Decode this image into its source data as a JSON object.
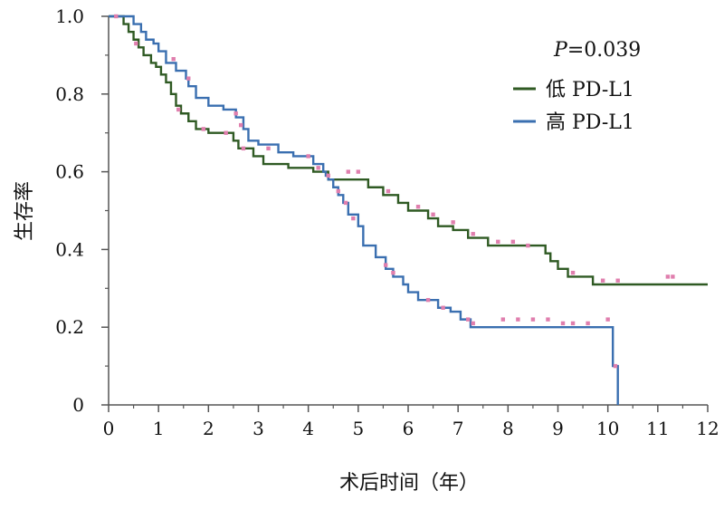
{
  "chart_data": {
    "type": "line",
    "xlabel": "术后时间（年）",
    "ylabel": "生存率",
    "xlim": [
      0,
      12
    ],
    "ylim": [
      0,
      1.0
    ],
    "x_ticks": [
      0,
      1,
      2,
      3,
      4,
      5,
      6,
      7,
      8,
      9,
      10,
      11,
      12
    ],
    "y_ticks": [
      0,
      0.2,
      0.4,
      0.6,
      0.8,
      1.0
    ],
    "x_tick_labels": [
      "0",
      "1",
      "2",
      "3",
      "4",
      "5",
      "6",
      "7",
      "8",
      "9",
      "10",
      "11",
      "12"
    ],
    "y_tick_labels": [
      "0",
      "0.2",
      "0.4",
      "0.6",
      "0.8",
      "1.0"
    ],
    "grid": false,
    "legend_position": "top-right",
    "annotation": {
      "p_label": "P",
      "p_value": "=0.039"
    },
    "censor_color": "#e07fae",
    "series": [
      {
        "name": "低 PD-L1",
        "color": "#2f5a23",
        "steps": [
          [
            0,
            1.0
          ],
          [
            0.3,
            0.98
          ],
          [
            0.4,
            0.96
          ],
          [
            0.5,
            0.94
          ],
          [
            0.6,
            0.92
          ],
          [
            0.7,
            0.9
          ],
          [
            0.85,
            0.88
          ],
          [
            0.95,
            0.87
          ],
          [
            1.05,
            0.85
          ],
          [
            1.15,
            0.83
          ],
          [
            1.25,
            0.8
          ],
          [
            1.35,
            0.77
          ],
          [
            1.45,
            0.75
          ],
          [
            1.6,
            0.73
          ],
          [
            1.75,
            0.71
          ],
          [
            2.0,
            0.7
          ],
          [
            2.5,
            0.68
          ],
          [
            2.6,
            0.66
          ],
          [
            2.9,
            0.64
          ],
          [
            3.1,
            0.62
          ],
          [
            3.6,
            0.61
          ],
          [
            4.1,
            0.6
          ],
          [
            4.4,
            0.58
          ],
          [
            5.2,
            0.56
          ],
          [
            5.5,
            0.54
          ],
          [
            5.8,
            0.52
          ],
          [
            6.0,
            0.5
          ],
          [
            6.4,
            0.48
          ],
          [
            6.6,
            0.46
          ],
          [
            6.9,
            0.45
          ],
          [
            7.2,
            0.43
          ],
          [
            7.6,
            0.41
          ],
          [
            8.75,
            0.39
          ],
          [
            8.85,
            0.37
          ],
          [
            9.0,
            0.35
          ],
          [
            9.2,
            0.33
          ],
          [
            9.7,
            0.31
          ],
          [
            12.0,
            0.31
          ]
        ],
        "censored": [
          [
            0.55,
            0.93
          ],
          [
            1.4,
            0.76
          ],
          [
            1.9,
            0.71
          ],
          [
            2.35,
            0.7
          ],
          [
            2.7,
            0.66
          ],
          [
            4.4,
            0.59
          ],
          [
            4.8,
            0.6
          ],
          [
            5.0,
            0.6
          ],
          [
            5.6,
            0.55
          ],
          [
            6.2,
            0.51
          ],
          [
            6.5,
            0.49
          ],
          [
            6.9,
            0.47
          ],
          [
            7.3,
            0.44
          ],
          [
            7.8,
            0.42
          ],
          [
            8.1,
            0.42
          ],
          [
            8.4,
            0.41
          ],
          [
            9.3,
            0.34
          ],
          [
            9.9,
            0.32
          ],
          [
            10.2,
            0.32
          ],
          [
            11.2,
            0.33
          ],
          [
            11.3,
            0.33
          ]
        ]
      },
      {
        "name": "高 PD-L1",
        "color": "#3a6fb0",
        "steps": [
          [
            0,
            1.0
          ],
          [
            0.5,
            0.98
          ],
          [
            0.65,
            0.96
          ],
          [
            0.75,
            0.94
          ],
          [
            0.9,
            0.93
          ],
          [
            1.0,
            0.91
          ],
          [
            1.15,
            0.88
          ],
          [
            1.35,
            0.86
          ],
          [
            1.55,
            0.84
          ],
          [
            1.6,
            0.82
          ],
          [
            1.75,
            0.79
          ],
          [
            2.0,
            0.77
          ],
          [
            2.3,
            0.76
          ],
          [
            2.55,
            0.74
          ],
          [
            2.7,
            0.71
          ],
          [
            2.8,
            0.68
          ],
          [
            3.0,
            0.67
          ],
          [
            3.4,
            0.65
          ],
          [
            3.7,
            0.64
          ],
          [
            4.1,
            0.62
          ],
          [
            4.3,
            0.6
          ],
          [
            4.35,
            0.59
          ],
          [
            4.4,
            0.58
          ],
          [
            4.5,
            0.56
          ],
          [
            4.6,
            0.54
          ],
          [
            4.7,
            0.52
          ],
          [
            4.8,
            0.49
          ],
          [
            5.0,
            0.46
          ],
          [
            5.1,
            0.41
          ],
          [
            5.35,
            0.38
          ],
          [
            5.55,
            0.35
          ],
          [
            5.7,
            0.33
          ],
          [
            5.9,
            0.31
          ],
          [
            6.0,
            0.29
          ],
          [
            6.2,
            0.27
          ],
          [
            6.6,
            0.25
          ],
          [
            6.85,
            0.24
          ],
          [
            7.05,
            0.22
          ],
          [
            7.25,
            0.2
          ],
          [
            10.1,
            0.1
          ],
          [
            10.2,
            0.0
          ]
        ],
        "censored": [
          [
            0.15,
            1.0
          ],
          [
            1.3,
            0.89
          ],
          [
            1.6,
            0.84
          ],
          [
            2.55,
            0.75
          ],
          [
            2.65,
            0.72
          ],
          [
            3.2,
            0.66
          ],
          [
            4.0,
            0.64
          ],
          [
            4.2,
            0.61
          ],
          [
            4.6,
            0.55
          ],
          [
            4.75,
            0.52
          ],
          [
            4.9,
            0.48
          ],
          [
            5.55,
            0.36
          ],
          [
            5.7,
            0.34
          ],
          [
            6.4,
            0.27
          ],
          [
            6.7,
            0.25
          ],
          [
            7.2,
            0.22
          ],
          [
            7.3,
            0.21
          ],
          [
            7.9,
            0.22
          ],
          [
            8.2,
            0.22
          ],
          [
            8.5,
            0.22
          ],
          [
            8.8,
            0.22
          ],
          [
            9.1,
            0.21
          ],
          [
            9.3,
            0.21
          ],
          [
            9.6,
            0.21
          ],
          [
            10.0,
            0.22
          ],
          [
            10.15,
            0.1
          ]
        ]
      }
    ]
  }
}
